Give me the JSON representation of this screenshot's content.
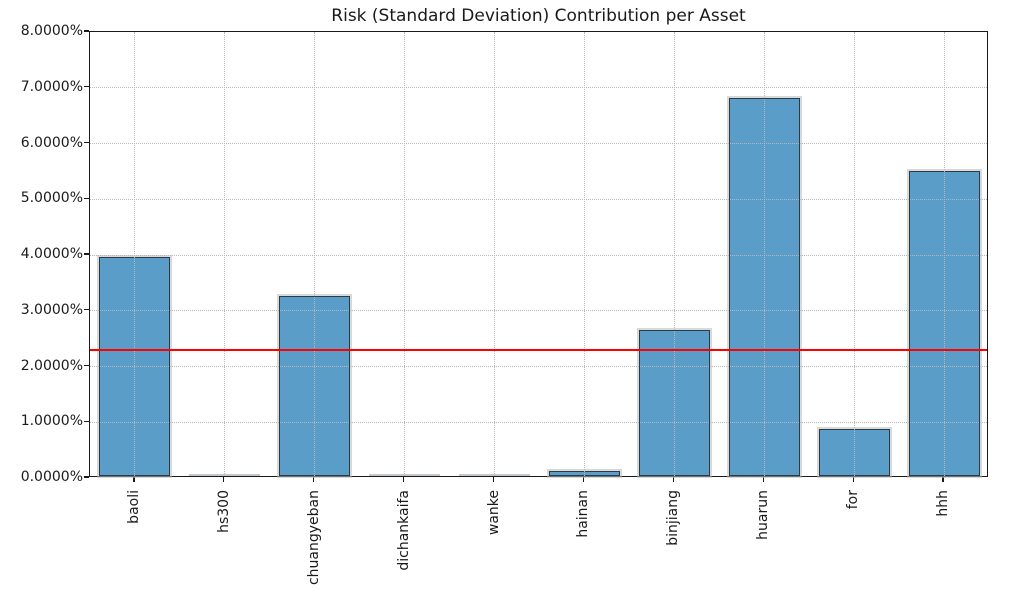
{
  "chart_data": {
    "type": "bar",
    "title": "Risk (Standard Deviation) Contribution per Asset",
    "categories": [
      "baoli",
      "hs300",
      "chuangyeban",
      "dichankaifa",
      "wanke",
      "hainan",
      "binjiang",
      "huarun",
      "for",
      "hhh"
    ],
    "values": [
      3.93,
      0.0,
      3.23,
      0.0,
      0.0,
      0.09,
      2.62,
      6.78,
      0.85,
      5.48
    ],
    "unit": "%",
    "ylim": [
      0,
      8
    ],
    "ytick_step": 1,
    "ytick_decimals": 4,
    "grid": true,
    "legend": "none",
    "reference_line": {
      "value": 2.3,
      "color": "#ff0000"
    },
    "bar_fill_color": "#5b9dc9",
    "bar_edge_color": "#2d3b45"
  }
}
